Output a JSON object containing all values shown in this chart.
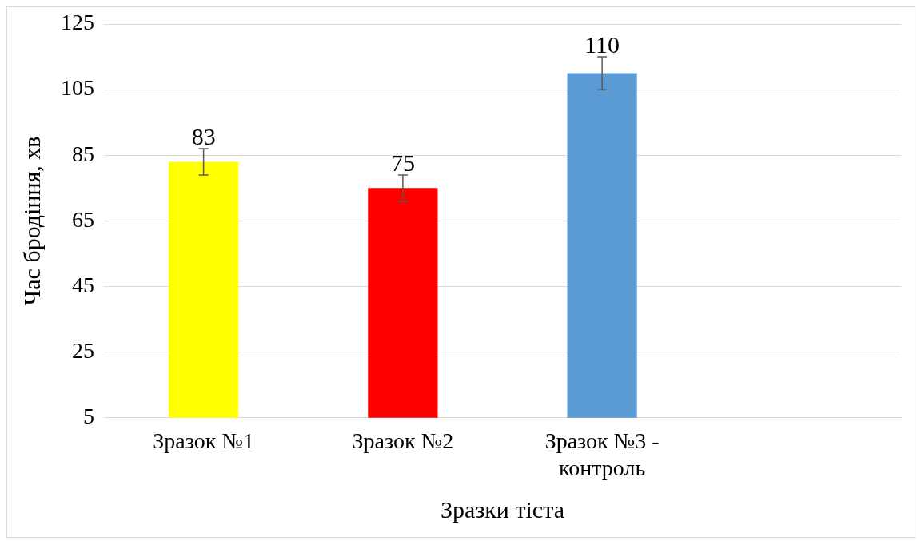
{
  "chart_data": {
    "type": "bar",
    "xlabel": "Зразки тіста",
    "ylabel": "Час бродіння, хв",
    "categories": [
      "Зразок №1",
      "Зразок №2",
      "Зразок №3 - контроль",
      null
    ],
    "values": [
      83,
      75,
      110,
      null
    ],
    "colors": [
      "#ffff00",
      "#ff0000",
      "#5b9bd5",
      null
    ],
    "errors": [
      4,
      4,
      5,
      null
    ],
    "ylim": [
      5,
      125
    ],
    "yticks": [
      5,
      25,
      45,
      65,
      85,
      105,
      125
    ],
    "grid": "y",
    "legend": false,
    "data_labels": true
  }
}
